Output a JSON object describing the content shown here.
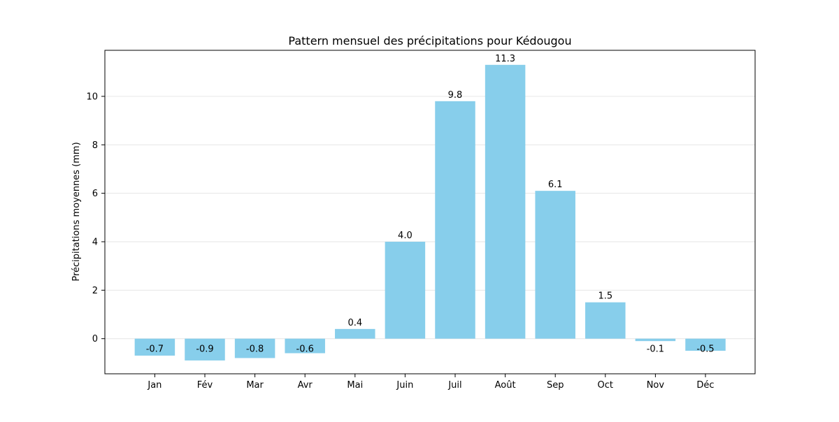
{
  "chart_data": {
    "type": "bar",
    "title": "Pattern mensuel des précipitations pour Kédougou",
    "xlabel": "",
    "ylabel": "Précipitations moyennes (mm)",
    "categories": [
      "Jan",
      "Fév",
      "Mar",
      "Avr",
      "Mai",
      "Juin",
      "Juil",
      "Août",
      "Sep",
      "Oct",
      "Nov",
      "Déc"
    ],
    "values": [
      -0.7,
      -0.9,
      -0.8,
      -0.6,
      0.4,
      4.0,
      9.8,
      11.3,
      6.1,
      1.5,
      -0.1,
      -0.5
    ],
    "value_labels": [
      "-0.7",
      "-0.9",
      "-0.8",
      "-0.6",
      "0.4",
      "4.0",
      "9.8",
      "11.3",
      "6.1",
      "1.5",
      "-0.1",
      "-0.5"
    ],
    "ylim": [
      -1.45,
      11.9
    ],
    "yticks": [
      0,
      2,
      4,
      6,
      8,
      10
    ],
    "grid": "horizontal",
    "bar_color": "#87ceeb"
  }
}
